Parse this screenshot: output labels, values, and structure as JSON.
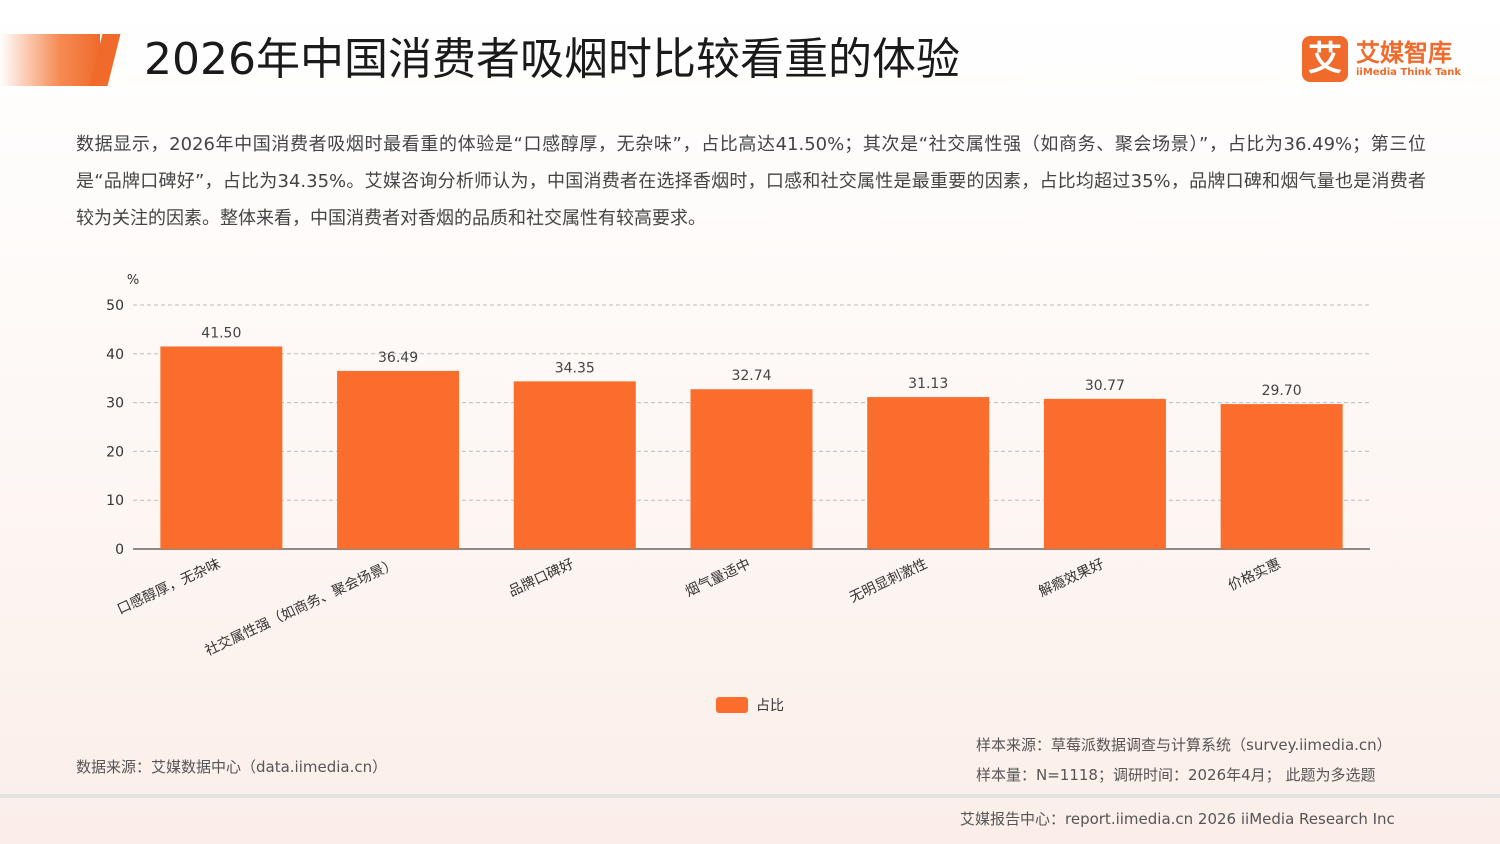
{
  "page": {
    "title": "2026年中国消费者吸烟时比较看重的体验",
    "logo_mark": "艾",
    "logo_cn": "艾媒智库",
    "logo_en": "iiMedia Think Tank",
    "summary": "数据显示，2026年中国消费者吸烟时最看重的体验是“口感醇厚，无杂味”，占比高达41.50%；其次是“社交属性强（如商务、聚会场景）”，占比为36.49%；第三位是“品牌口碑好”，占比为34.35%。艾媒咨询分析师认为，中国消费者在选择香烟时，口感和社交属性是最重要的因素，占比均超过35%，品牌口碑和烟气量也是消费者较为关注的因素。整体来看，中国消费者对香烟的品质和社交属性有较高要求。",
    "data_source": "数据来源：艾媒数据中心（data.iimedia.cn）",
    "sample_source": "样本来源：草莓派数据调查与计算系统（survey.iimedia.cn）",
    "sample_info": "样本量：N=1118；调研时间：2026年4月；  此题为多选题",
    "footer": "艾媒报告中心：report.iimedia.cn   2026 iiMedia Research Inc",
    "accent_color": "#f06a2c"
  },
  "chart_data": {
    "type": "bar",
    "categories": [
      "口感醇厚，无杂味",
      "社交属性强（如商务、聚会场景）",
      "品牌口碑好",
      "烟气量适中",
      "无明显刺激性",
      "解瘾效果好",
      "价格实惠"
    ],
    "series": [
      {
        "name": "占比",
        "values": [
          41.5,
          36.49,
          34.35,
          32.74,
          31.13,
          30.77,
          29.7
        ],
        "color": "#fb6d2c"
      }
    ],
    "value_labels": [
      "41.50",
      "36.49",
      "34.35",
      "32.74",
      "31.13",
      "30.77",
      "29.70"
    ],
    "ylabel": "%",
    "ylim": [
      0,
      50
    ],
    "yticks": [
      0,
      10,
      20,
      30,
      40,
      50
    ],
    "grid": true,
    "legend": "bottom-center"
  }
}
